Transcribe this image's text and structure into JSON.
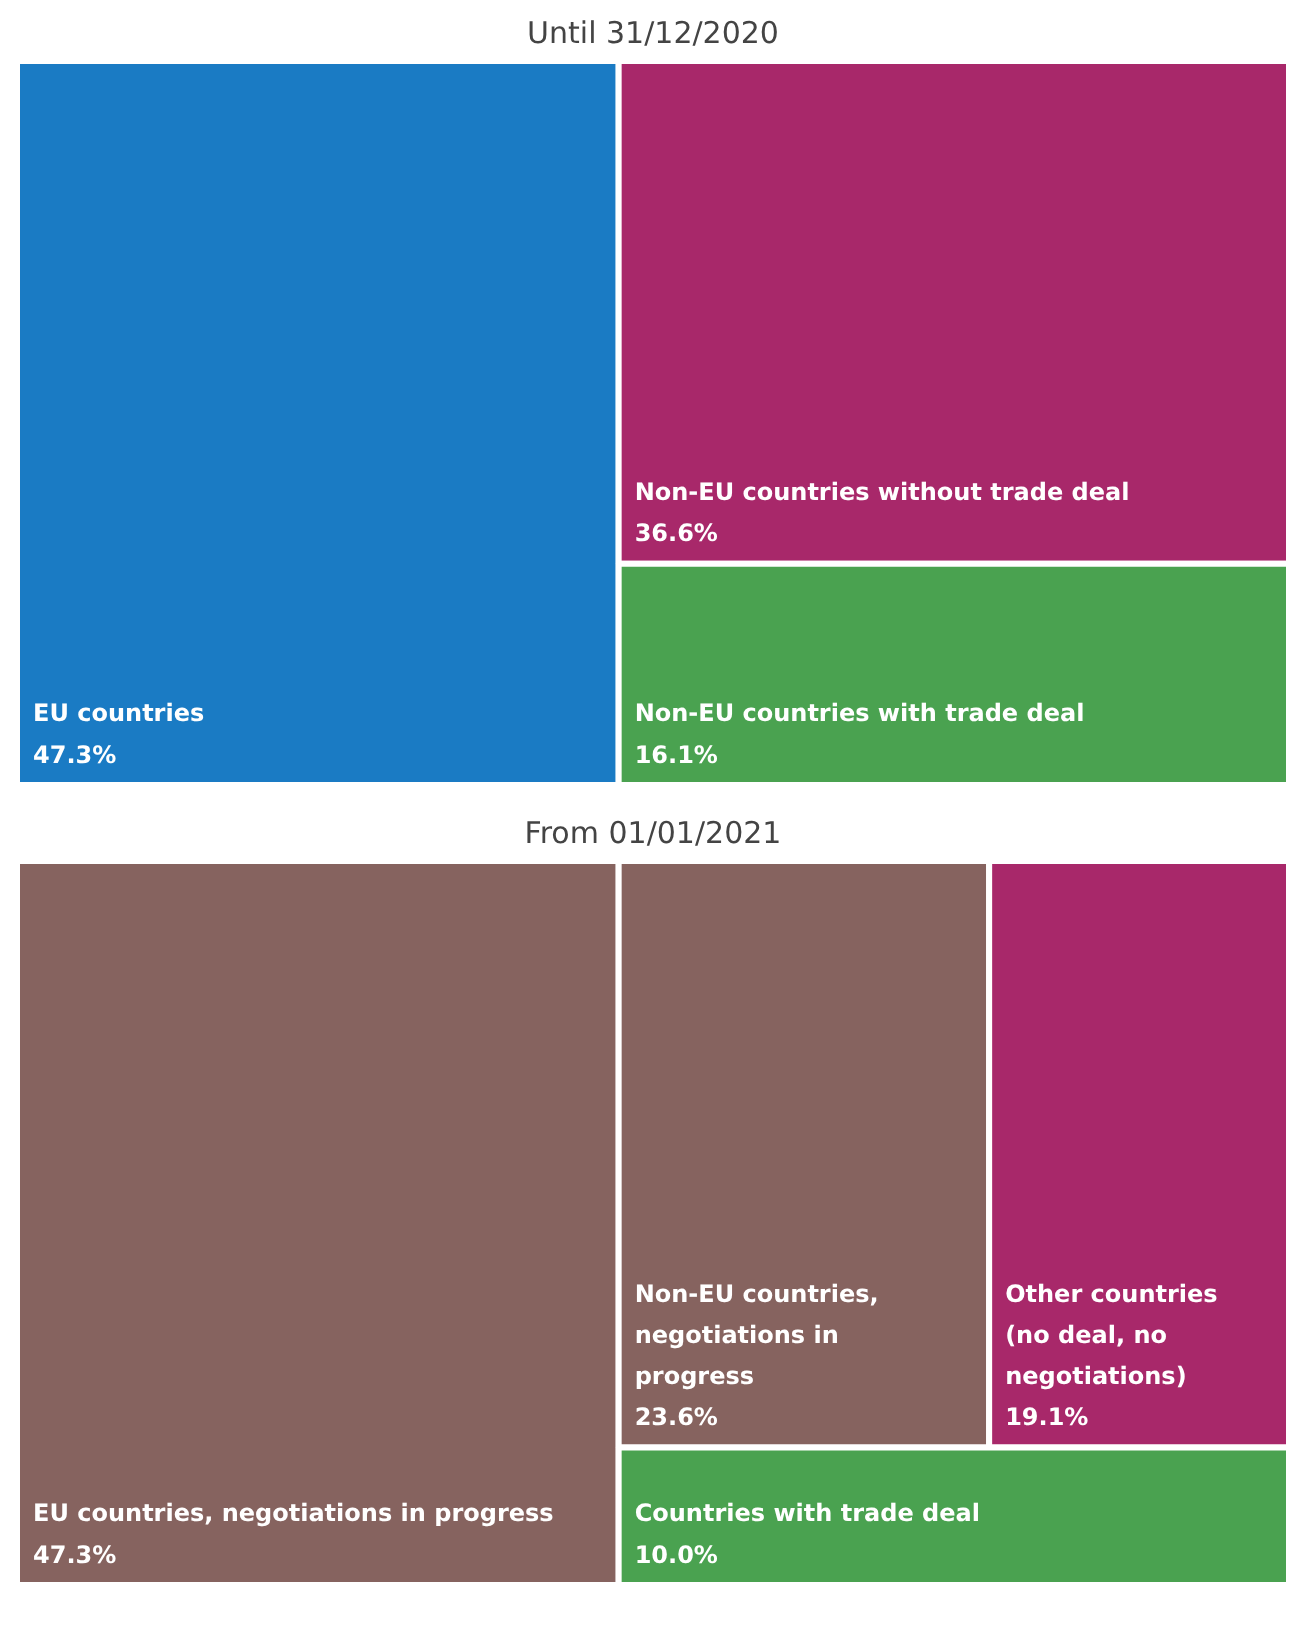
{
  "chart_data": [
    {
      "type": "other",
      "title": "Until 31/12/2020",
      "categories": [
        "EU countries",
        "Non-EU countries without trade deal",
        "Non-EU countries with trade deal"
      ],
      "values": [
        47.3,
        36.6,
        16.1
      ],
      "value_labels": [
        "47.3%",
        "36.6%",
        "16.1%"
      ],
      "colors": [
        "#1a7bc4",
        "#a8286a",
        "#4aa250"
      ]
    },
    {
      "type": "other",
      "title": "From 01/01/2021",
      "categories": [
        "EU countries, negotiations in progress",
        "Non-EU countries,\nnegotiations in\nprogress",
        "Other countries\n(no deal, no\nnegotiations)",
        "Countries with trade deal"
      ],
      "values": [
        47.3,
        23.6,
        19.1,
        10.0
      ],
      "value_labels": [
        "47.3%",
        "23.6%",
        "19.1%",
        "10.0%"
      ],
      "colors": [
        "#86635f",
        "#86635f",
        "#a8286a",
        "#4aa250"
      ]
    }
  ]
}
